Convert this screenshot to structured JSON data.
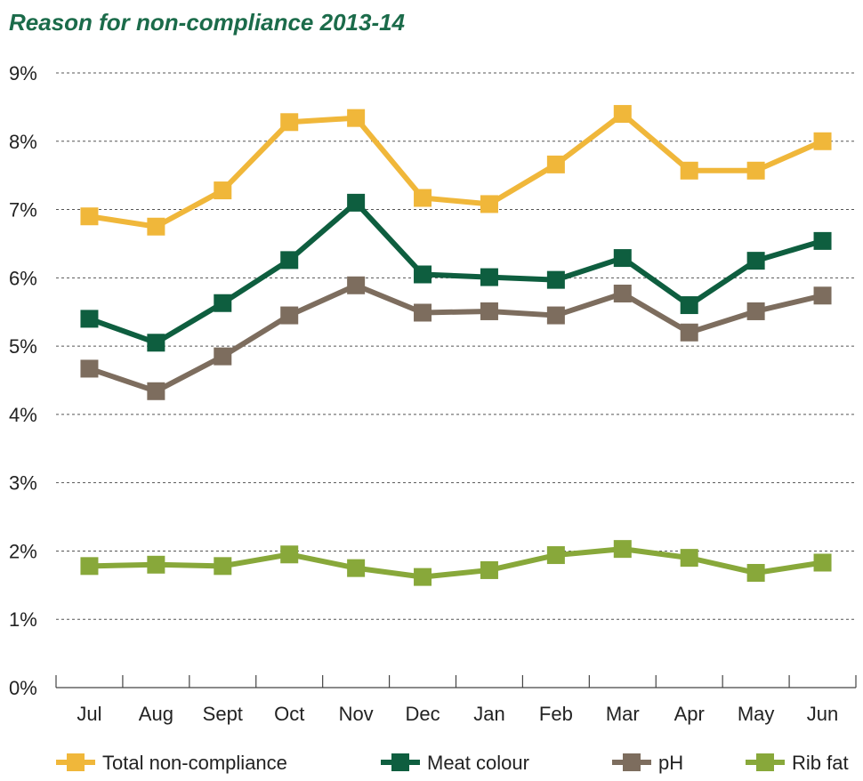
{
  "chart_data": {
    "type": "line",
    "title": "Reason for non-compliance 2013-14",
    "xlabel": "",
    "ylabel": "",
    "ylim": [
      0,
      9
    ],
    "yticks": [
      "0%",
      "1%",
      "2%",
      "3%",
      "4%",
      "5%",
      "6%",
      "7%",
      "8%",
      "9%"
    ],
    "grid": true,
    "legend_position": "bottom",
    "categories": [
      "Jul",
      "Aug",
      "Sept",
      "Oct",
      "Nov",
      "Dec",
      "Jan",
      "Feb",
      "Mar",
      "Apr",
      "May",
      "Jun"
    ],
    "series": [
      {
        "name": "Total non-compliance",
        "color": "#f0b73a",
        "values": [
          6.9,
          6.75,
          7.28,
          8.28,
          8.34,
          7.17,
          7.08,
          7.66,
          8.4,
          7.57,
          7.57,
          8.0
        ]
      },
      {
        "name": "Meat colour",
        "color": "#0e5e3f",
        "values": [
          5.4,
          5.05,
          5.63,
          6.26,
          7.1,
          6.05,
          6.01,
          5.97,
          6.29,
          5.6,
          6.25,
          6.54
        ]
      },
      {
        "name": "pH",
        "color": "#7d6d5e",
        "values": [
          4.67,
          4.34,
          4.85,
          5.45,
          5.89,
          5.49,
          5.51,
          5.45,
          5.77,
          5.2,
          5.51,
          5.74
        ]
      },
      {
        "name": "Rib fat",
        "color": "#88a83a",
        "values": [
          1.78,
          1.8,
          1.78,
          1.95,
          1.75,
          1.62,
          1.72,
          1.94,
          2.03,
          1.9,
          1.68,
          1.83
        ]
      }
    ]
  }
}
